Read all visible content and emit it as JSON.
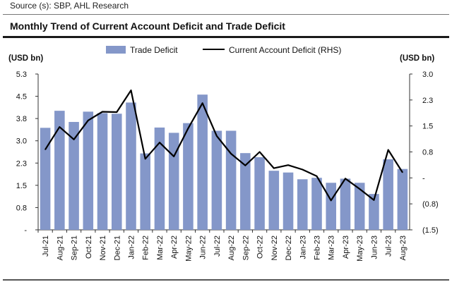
{
  "header": {
    "source": "Source (s): SBP, AHL Research",
    "title": "Monthly Trend of Current Account Deficit and Trade Deficit"
  },
  "colors": {
    "bar": "#8497c9",
    "line": "#000000",
    "axis": "#333333"
  },
  "chart_data": {
    "type": "bar",
    "title": "Monthly Trend of Current Account Deficit and Trade Deficit",
    "left_unit": "(USD bn)",
    "right_unit": "(USD bn)",
    "legend": {
      "placement": "top",
      "bar_label": "Trade Deficit",
      "line_label": "Current Account Deficit (RHS)"
    },
    "categories": [
      "Jul-21",
      "Aug-21",
      "Sep-21",
      "Oct-21",
      "Nov-21",
      "Dec-21",
      "Jan-22",
      "Feb-22",
      "Mar-22",
      "Apr-22",
      "May-22",
      "Jun-22",
      "Jul-22",
      "Aug-22",
      "Sep-22",
      "Oct-22",
      "Nov-22",
      "Dec-22",
      "Jan-23",
      "Feb-23",
      "Mar-23",
      "Apr-23",
      "May-23",
      "Jun-23",
      "Jul-23",
      "Aug-23"
    ],
    "left_ticks": [
      "5.3",
      "4.5",
      "3.8",
      "3.0",
      "2.3",
      "1.5",
      "0.8",
      "-"
    ],
    "right_ticks": [
      "3.0",
      "2.3",
      "1.5",
      "0.8",
      "-",
      "(0.8)",
      "(1.5)"
    ],
    "left_ylim": [
      0,
      5.3
    ],
    "right_ylim": [
      -1.5,
      3.0
    ],
    "series": [
      {
        "name": "Trade Deficit",
        "axis": "left",
        "type": "bar",
        "values": [
          3.47,
          4.05,
          3.67,
          4.02,
          3.97,
          3.95,
          4.33,
          2.6,
          3.48,
          3.3,
          3.63,
          4.6,
          3.37,
          3.37,
          2.61,
          2.47,
          2.01,
          1.95,
          1.72,
          1.77,
          1.6,
          1.74,
          1.6,
          1.22,
          2.4,
          2.07
        ]
      },
      {
        "name": "Current Account Deficit (RHS)",
        "axis": "right",
        "type": "line",
        "values": [
          0.82,
          1.47,
          1.11,
          1.66,
          1.91,
          1.9,
          2.53,
          0.55,
          1.02,
          0.62,
          1.43,
          2.16,
          1.21,
          0.7,
          0.36,
          0.75,
          0.28,
          0.37,
          0.24,
          0.05,
          -0.65,
          -0.02,
          -0.32,
          -0.64,
          0.81,
          0.16
        ]
      }
    ]
  }
}
